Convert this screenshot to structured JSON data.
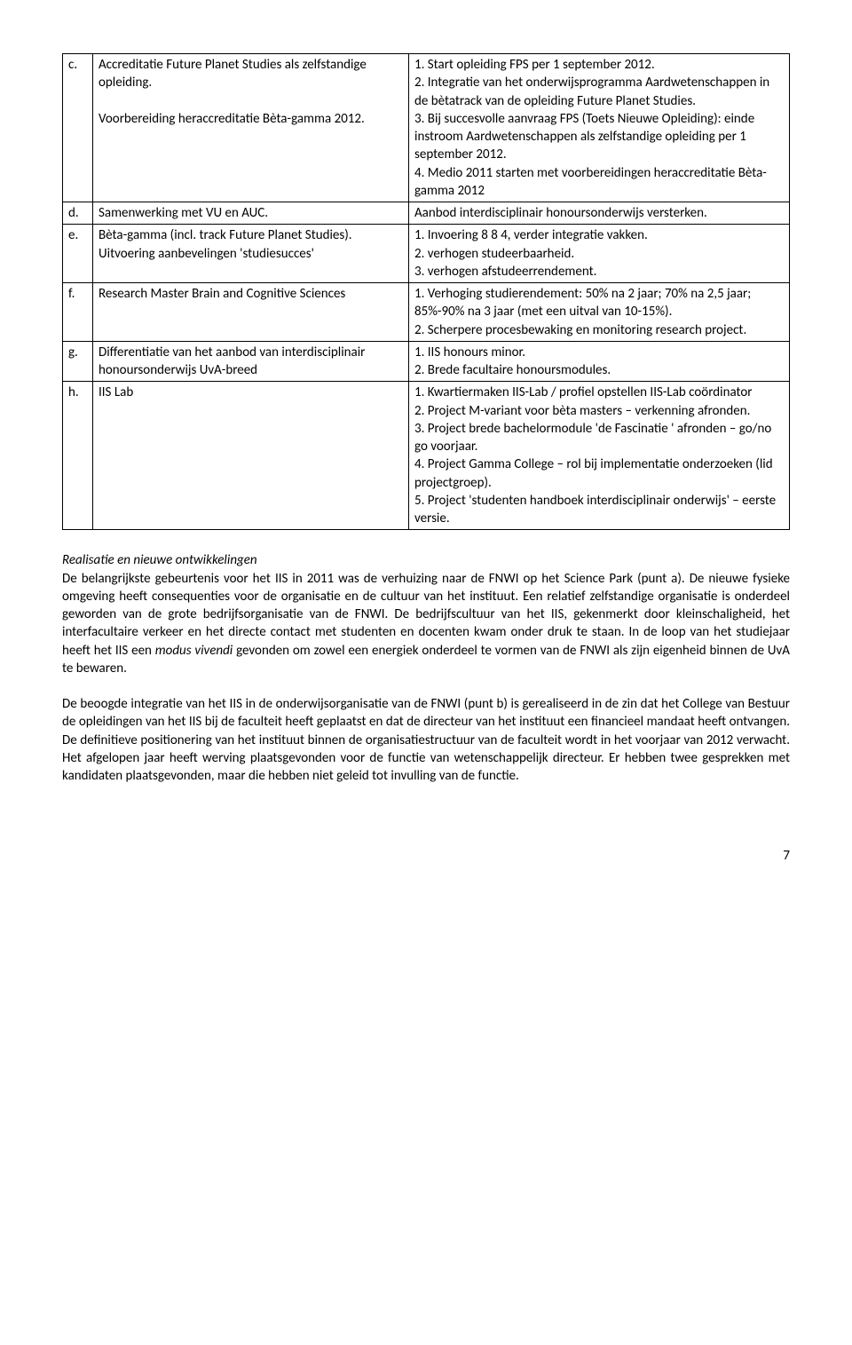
{
  "table": {
    "rows": [
      {
        "label": "c.",
        "left": "Accreditatie Future Planet Studies als zelfstandige opleiding.\n\nVoorbereiding heraccreditatie Bèta-gamma 2012.",
        "right": "1.   Start opleiding FPS per 1 september 2012.\n2.   Integratie van het onderwijsprogramma Aardwetenschappen in de bètatrack van de opleiding Future Planet Studies.\n3.   Bij succesvolle aanvraag FPS (Toets Nieuwe Opleiding): einde instroom Aardwetenschappen als zelfstandige opleiding per 1 september 2012.\n4.   Medio 2011 starten met voorbereidingen heraccreditatie Bèta-gamma 2012"
      },
      {
        "label": "d.",
        "left": "Samenwerking met VU en AUC.",
        "right": "Aanbod interdisciplinair honoursonderwijs versterken."
      },
      {
        "label": "e.",
        "left": "Bèta-gamma (incl. track Future Planet Studies).\nUitvoering aanbevelingen 'studiesucces'",
        "right": "1.          Invoering 8 8 4, verder integratie vakken.\n2.          verhogen studeerbaarheid.\n3.          verhogen afstudeerrendement."
      },
      {
        "label": "f.",
        "left": "Research Master Brain and Cognitive Sciences",
        "right": "1.          Verhoging studierendement: 50% na 2 jaar; 70% na 2,5 jaar; 85%-90% na 3 jaar (met een uitval van 10-15%).\n2.          Scherpere procesbewaking en monitoring  research project."
      },
      {
        "label": "g.",
        "left": "Differentiatie van het  aanbod van interdisciplinair honoursonderwijs UvA-breed",
        "right": "1.   IIS honours minor.\n2.   Brede facultaire honoursmodules."
      },
      {
        "label": "h.",
        "left": "IIS Lab",
        "right": "1.   Kwartiermaken IIS-Lab / profiel opstellen IIS-Lab coördinator\n2.   Project M-variant voor bèta masters – verkenning afronden.\n3.   Project brede bachelormodule 'de Fascinatie ' afronden  –  go/no go voorjaar.\n4.   Project Gamma College – rol bij implementatie onderzoeken (lid projectgroep).\n5.   Project  'studenten handboek interdisciplinair onderwijs' – eerste versie."
      }
    ]
  },
  "section_title": "Realisatie en nieuwe ontwikkelingen",
  "para1_a": "De belangrijkste gebeurtenis voor het IIS in 2011 was de verhuizing naar de FNWI op het Science Park (punt a). De nieuwe fysieke omgeving heeft consequenties voor de organisatie en de cultuur van het instituut. Een relatief zelfstandige organisatie is onderdeel geworden van de grote bedrijfsorganisatie van de FNWI. De bedrijfscultuur van het IIS, gekenmerkt door kleinschaligheid, het interfacultaire verkeer en het directe contact met studenten en docenten kwam onder druk te staan. In de loop van het studiejaar heeft het IIS een ",
  "para1_em": "modus vivendi",
  "para1_b": " gevonden om zowel een energiek onderdeel te vormen van de FNWI als zijn eigenheid binnen de UvA te bewaren.",
  "para2": "De beoogde integratie van het IIS in de onderwijsorganisatie van de FNWI (punt b) is gerealiseerd in de zin dat het College van Bestuur de opleidingen van het IIS bij de faculteit heeft geplaatst en dat de directeur van het instituut een financieel mandaat heeft ontvangen. De definitieve positionering van het instituut binnen de organisatiestructuur van de faculteit wordt in het voorjaar van 2012 verwacht. Het afgelopen jaar heeft werving plaatsgevonden voor de functie van wetenschappelijk directeur. Er hebben twee gesprekken met kandidaten plaatsgevonden, maar die hebben niet geleid tot invulling van de functie.",
  "page_number": "7"
}
